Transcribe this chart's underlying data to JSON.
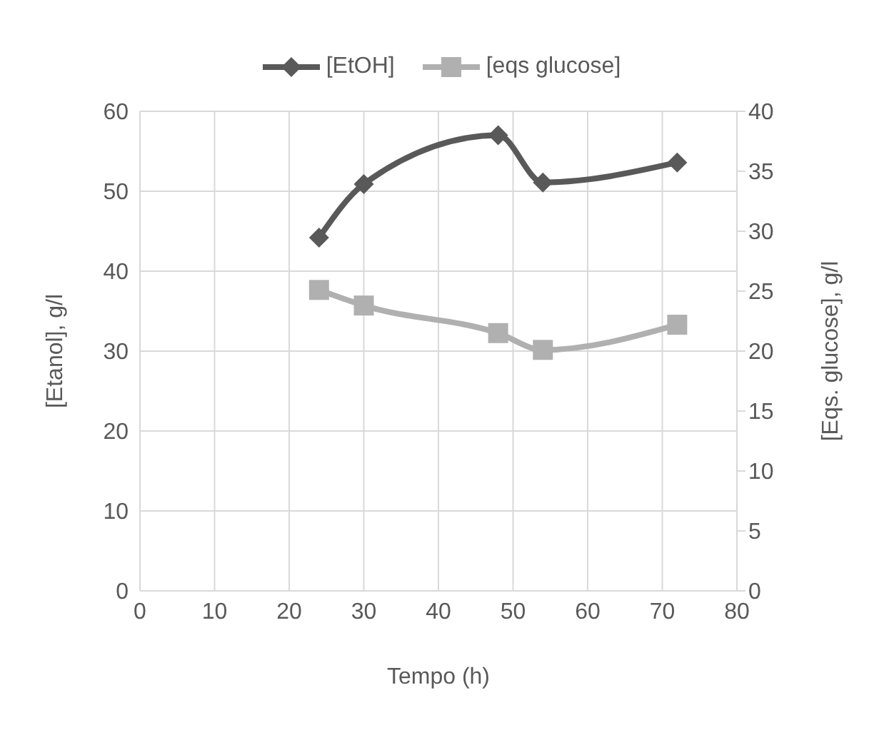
{
  "chart_data": {
    "type": "line",
    "xlabel": "Tempo (h)",
    "ylabel": "[Etanol], g/l",
    "y2label": "[Eqs. glucose], g/l",
    "x": [
      24,
      30,
      48,
      54,
      72
    ],
    "series": [
      {
        "name": "[EtOH]",
        "color": "#595959",
        "values": [
          44.2,
          50.9,
          57.0,
          51.1,
          53.6
        ],
        "marker": "diamond"
      },
      {
        "name": "[eqs glucose]",
        "color": "#b0b0b0",
        "values": [
          25.1,
          23.8,
          21.5,
          20.1,
          22.2
        ],
        "marker": "square",
        "axis": "y2"
      }
    ],
    "xlim": [
      0,
      80
    ],
    "xticks": [
      0,
      10,
      20,
      30,
      40,
      50,
      60,
      70,
      80
    ],
    "ylim": [
      0,
      60
    ],
    "yticks": [
      0,
      10,
      20,
      30,
      40,
      50,
      60
    ],
    "y2lim": [
      0,
      40
    ],
    "y2ticks": [
      0,
      5,
      10,
      15,
      20,
      25,
      30,
      35,
      40
    ],
    "grid": true,
    "legend": "top"
  }
}
